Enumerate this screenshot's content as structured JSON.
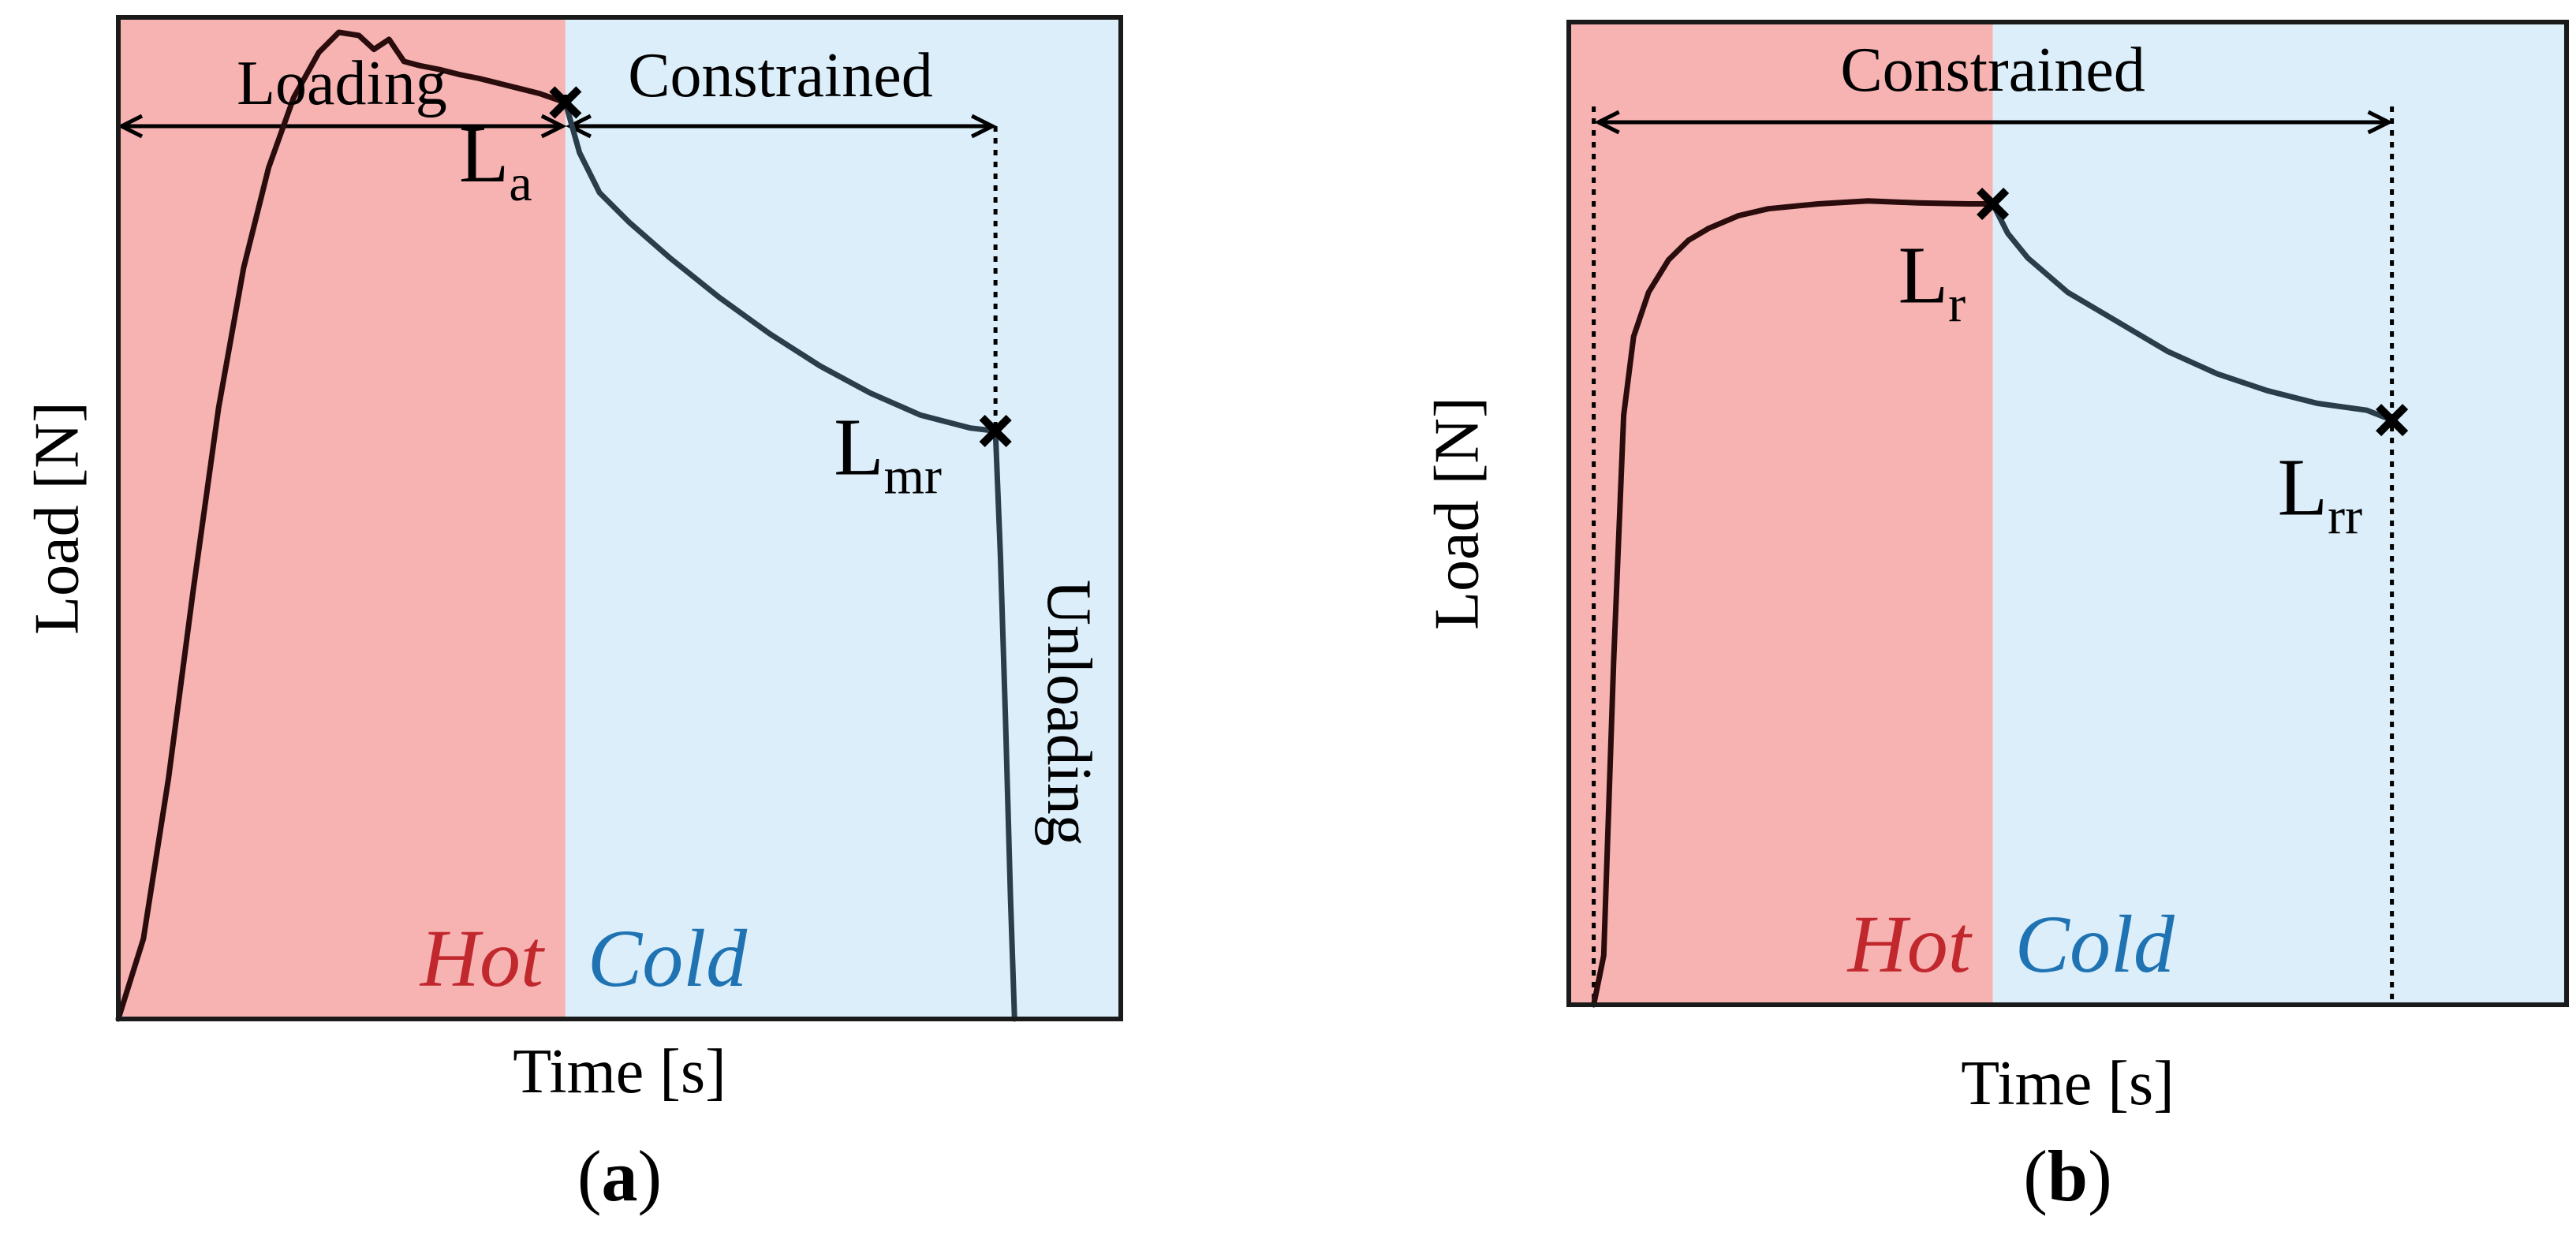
{
  "colors": {
    "hot_bg": "#f7b2b2",
    "cold_bg": "#dbeef9",
    "hot_text": "#c0282d",
    "cold_text": "#1f73b3",
    "curve_hot": "#2a0c0c",
    "curve_cold": "#2a3d4a",
    "marker": "#000000"
  },
  "chart_data": [
    {
      "type": "line",
      "panel": "a",
      "xlabel": "Time [s]",
      "ylabel": "Load [N]",
      "xlim": [
        0,
        100
      ],
      "ylim": [
        0,
        100
      ],
      "zones": {
        "hot": "Hot",
        "cold": "Cold",
        "boundary_x": 44.6
      },
      "regions": [
        {
          "label": "Loading",
          "x_start": 0,
          "x_end": 44.6
        },
        {
          "label": "Constrained",
          "x_start": 44.6,
          "x_end": 87.5
        },
        {
          "label": "Unloading",
          "x": 89
        }
      ],
      "series": [
        {
          "x": [
            0,
            2.5,
            5,
            7.5,
            10,
            12.5,
            15,
            17.5,
            20,
            22,
            24,
            25.5,
            27,
            28.5,
            30,
            32,
            34,
            36,
            38,
            40,
            42,
            44.6,
            46,
            48,
            51,
            55,
            60,
            65,
            70,
            75,
            80,
            85,
            87.5,
            88,
            88.5,
            89,
            89.4
          ],
          "y": [
            0,
            8,
            24,
            43,
            61,
            75,
            85,
            92,
            96.5,
            98.5,
            98.2,
            96.8,
            97.8,
            95.6,
            95.2,
            94.8,
            94.3,
            93.9,
            93.4,
            92.9,
            92.4,
            91.5,
            86.5,
            82.5,
            79.5,
            76,
            72,
            68.4,
            65.2,
            62.5,
            60.3,
            59,
            58.7,
            46,
            30,
            12,
            0
          ]
        }
      ],
      "points": [
        {
          "label": "L",
          "sub": "a",
          "x": 44.6,
          "y": 91.5
        },
        {
          "label": "L",
          "sub": "mr",
          "x": 87.5,
          "y": 58.7
        }
      ],
      "caption": "a"
    },
    {
      "type": "line",
      "panel": "b",
      "xlabel": "Time [s]",
      "ylabel": "Load [N]",
      "xlim": [
        0,
        100
      ],
      "ylim": [
        0,
        100
      ],
      "zones": {
        "hot": "Hot",
        "cold": "Cold",
        "boundary_x": 42.5
      },
      "regions": [
        {
          "label": "Constrained",
          "x_start": 2.5,
          "x_end": 82.5
        }
      ],
      "series": [
        {
          "x": [
            2.5,
            3.5,
            4.5,
            5.5,
            6.5,
            8,
            10,
            12,
            14,
            17,
            20,
            25,
            30,
            35,
            40,
            42.5,
            44,
            46,
            50,
            55,
            60,
            65,
            70,
            75,
            80,
            82.5
          ],
          "y": [
            0,
            5,
            35,
            60,
            68,
            72.5,
            75.8,
            77.8,
            79,
            80.3,
            81,
            81.5,
            81.8,
            81.6,
            81.5,
            81.5,
            78.5,
            76,
            72.5,
            69.5,
            66.5,
            64.2,
            62.5,
            61.2,
            60.5,
            59.5
          ]
        }
      ],
      "points": [
        {
          "label": "L",
          "sub": "r",
          "x": 42.5,
          "y": 81.5
        },
        {
          "label": "L",
          "sub": "rr",
          "x": 82.5,
          "y": 59.5
        }
      ],
      "caption": "b"
    }
  ]
}
